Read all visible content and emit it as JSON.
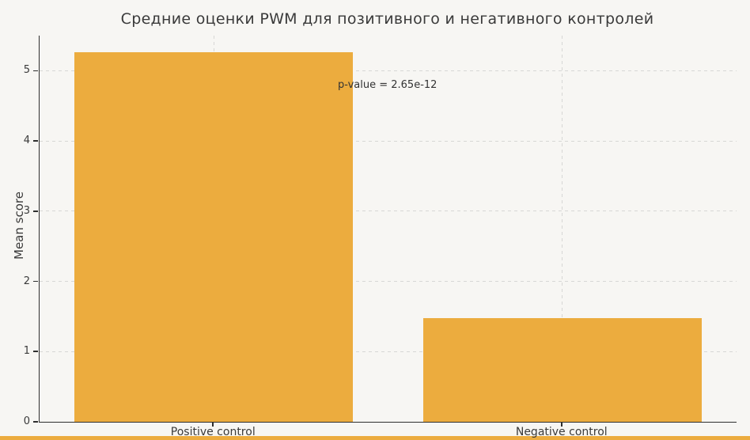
{
  "figure": {
    "background_color": "#f7f6f3",
    "accent_strip_color": "#ecac3e"
  },
  "chart_data": {
    "type": "bar",
    "title": "Средние оценки PWM для позитивного и негативного контролей",
    "categories": [
      "Positive control",
      "Negative control"
    ],
    "values": [
      5.26,
      1.48
    ],
    "bar_color": "#ecac3e",
    "bar_width_fraction": 0.8,
    "xlabel": "",
    "ylabel": "Mean score",
    "ylim": [
      0,
      5.5
    ],
    "yticks": [
      0,
      1,
      2,
      3,
      4,
      5
    ],
    "grid": "dashed light-gray, horizontal at each y tick and vertical at each bar center",
    "legend": "none",
    "annotation": "p-value = 2.65e-12",
    "spine_color": "#2e2e2e",
    "grid_color": "#d7d7d5",
    "text_color": "#3a3a3a"
  }
}
